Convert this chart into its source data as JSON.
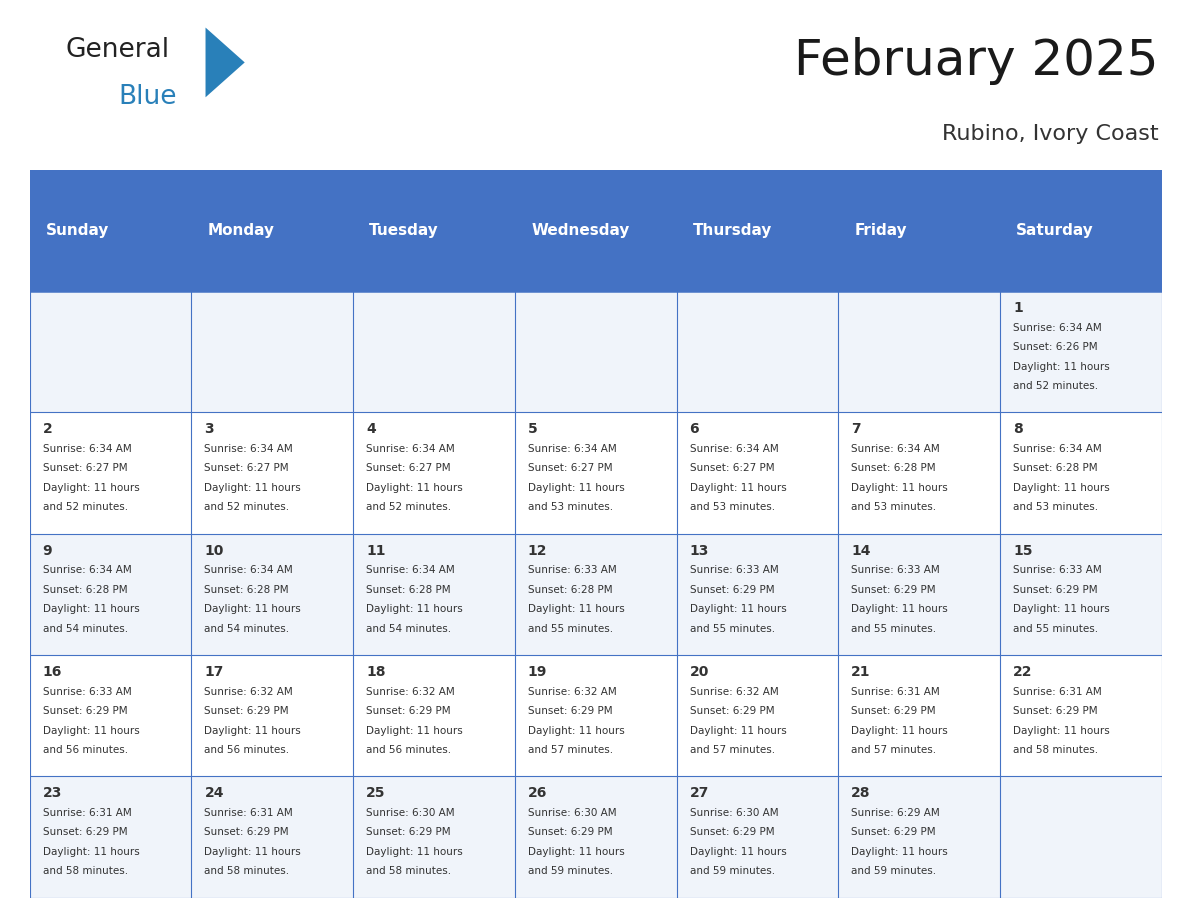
{
  "title": "February 2025",
  "subtitle": "Rubino, Ivory Coast",
  "header_bg": "#4472C4",
  "header_text_color": "#FFFFFF",
  "cell_bg_white": "#FFFFFF",
  "cell_bg_gray": "#F0F4FA",
  "border_color": "#4472C4",
  "text_color": "#333333",
  "days_of_week": [
    "Sunday",
    "Monday",
    "Tuesday",
    "Wednesday",
    "Thursday",
    "Friday",
    "Saturday"
  ],
  "num_cols": 7,
  "num_rows": 5,
  "days_data": [
    {
      "day": 1,
      "col": 6,
      "row": 0,
      "sunrise": "6:34 AM",
      "sunset": "6:26 PM",
      "daylight": "11 hours and 52 minutes."
    },
    {
      "day": 2,
      "col": 0,
      "row": 1,
      "sunrise": "6:34 AM",
      "sunset": "6:27 PM",
      "daylight": "11 hours and 52 minutes."
    },
    {
      "day": 3,
      "col": 1,
      "row": 1,
      "sunrise": "6:34 AM",
      "sunset": "6:27 PM",
      "daylight": "11 hours and 52 minutes."
    },
    {
      "day": 4,
      "col": 2,
      "row": 1,
      "sunrise": "6:34 AM",
      "sunset": "6:27 PM",
      "daylight": "11 hours and 52 minutes."
    },
    {
      "day": 5,
      "col": 3,
      "row": 1,
      "sunrise": "6:34 AM",
      "sunset": "6:27 PM",
      "daylight": "11 hours and 53 minutes."
    },
    {
      "day": 6,
      "col": 4,
      "row": 1,
      "sunrise": "6:34 AM",
      "sunset": "6:27 PM",
      "daylight": "11 hours and 53 minutes."
    },
    {
      "day": 7,
      "col": 5,
      "row": 1,
      "sunrise": "6:34 AM",
      "sunset": "6:28 PM",
      "daylight": "11 hours and 53 minutes."
    },
    {
      "day": 8,
      "col": 6,
      "row": 1,
      "sunrise": "6:34 AM",
      "sunset": "6:28 PM",
      "daylight": "11 hours and 53 minutes."
    },
    {
      "day": 9,
      "col": 0,
      "row": 2,
      "sunrise": "6:34 AM",
      "sunset": "6:28 PM",
      "daylight": "11 hours and 54 minutes."
    },
    {
      "day": 10,
      "col": 1,
      "row": 2,
      "sunrise": "6:34 AM",
      "sunset": "6:28 PM",
      "daylight": "11 hours and 54 minutes."
    },
    {
      "day": 11,
      "col": 2,
      "row": 2,
      "sunrise": "6:34 AM",
      "sunset": "6:28 PM",
      "daylight": "11 hours and 54 minutes."
    },
    {
      "day": 12,
      "col": 3,
      "row": 2,
      "sunrise": "6:33 AM",
      "sunset": "6:28 PM",
      "daylight": "11 hours and 55 minutes."
    },
    {
      "day": 13,
      "col": 4,
      "row": 2,
      "sunrise": "6:33 AM",
      "sunset": "6:29 PM",
      "daylight": "11 hours and 55 minutes."
    },
    {
      "day": 14,
      "col": 5,
      "row": 2,
      "sunrise": "6:33 AM",
      "sunset": "6:29 PM",
      "daylight": "11 hours and 55 minutes."
    },
    {
      "day": 15,
      "col": 6,
      "row": 2,
      "sunrise": "6:33 AM",
      "sunset": "6:29 PM",
      "daylight": "11 hours and 55 minutes."
    },
    {
      "day": 16,
      "col": 0,
      "row": 3,
      "sunrise": "6:33 AM",
      "sunset": "6:29 PM",
      "daylight": "11 hours and 56 minutes."
    },
    {
      "day": 17,
      "col": 1,
      "row": 3,
      "sunrise": "6:32 AM",
      "sunset": "6:29 PM",
      "daylight": "11 hours and 56 minutes."
    },
    {
      "day": 18,
      "col": 2,
      "row": 3,
      "sunrise": "6:32 AM",
      "sunset": "6:29 PM",
      "daylight": "11 hours and 56 minutes."
    },
    {
      "day": 19,
      "col": 3,
      "row": 3,
      "sunrise": "6:32 AM",
      "sunset": "6:29 PM",
      "daylight": "11 hours and 57 minutes."
    },
    {
      "day": 20,
      "col": 4,
      "row": 3,
      "sunrise": "6:32 AM",
      "sunset": "6:29 PM",
      "daylight": "11 hours and 57 minutes."
    },
    {
      "day": 21,
      "col": 5,
      "row": 3,
      "sunrise": "6:31 AM",
      "sunset": "6:29 PM",
      "daylight": "11 hours and 57 minutes."
    },
    {
      "day": 22,
      "col": 6,
      "row": 3,
      "sunrise": "6:31 AM",
      "sunset": "6:29 PM",
      "daylight": "11 hours and 58 minutes."
    },
    {
      "day": 23,
      "col": 0,
      "row": 4,
      "sunrise": "6:31 AM",
      "sunset": "6:29 PM",
      "daylight": "11 hours and 58 minutes."
    },
    {
      "day": 24,
      "col": 1,
      "row": 4,
      "sunrise": "6:31 AM",
      "sunset": "6:29 PM",
      "daylight": "11 hours and 58 minutes."
    },
    {
      "day": 25,
      "col": 2,
      "row": 4,
      "sunrise": "6:30 AM",
      "sunset": "6:29 PM",
      "daylight": "11 hours and 58 minutes."
    },
    {
      "day": 26,
      "col": 3,
      "row": 4,
      "sunrise": "6:30 AM",
      "sunset": "6:29 PM",
      "daylight": "11 hours and 59 minutes."
    },
    {
      "day": 27,
      "col": 4,
      "row": 4,
      "sunrise": "6:30 AM",
      "sunset": "6:29 PM",
      "daylight": "11 hours and 59 minutes."
    },
    {
      "day": 28,
      "col": 5,
      "row": 4,
      "sunrise": "6:29 AM",
      "sunset": "6:29 PM",
      "daylight": "11 hours and 59 minutes."
    }
  ],
  "logo_text1": "General",
  "logo_text2": "Blue",
  "logo_color1": "#222222",
  "logo_color2": "#2980B9",
  "logo_triangle_color": "#2980B9",
  "title_fontsize": 36,
  "subtitle_fontsize": 16,
  "header_fontsize": 11,
  "day_num_fontsize": 10,
  "cell_text_fontsize": 7.5
}
